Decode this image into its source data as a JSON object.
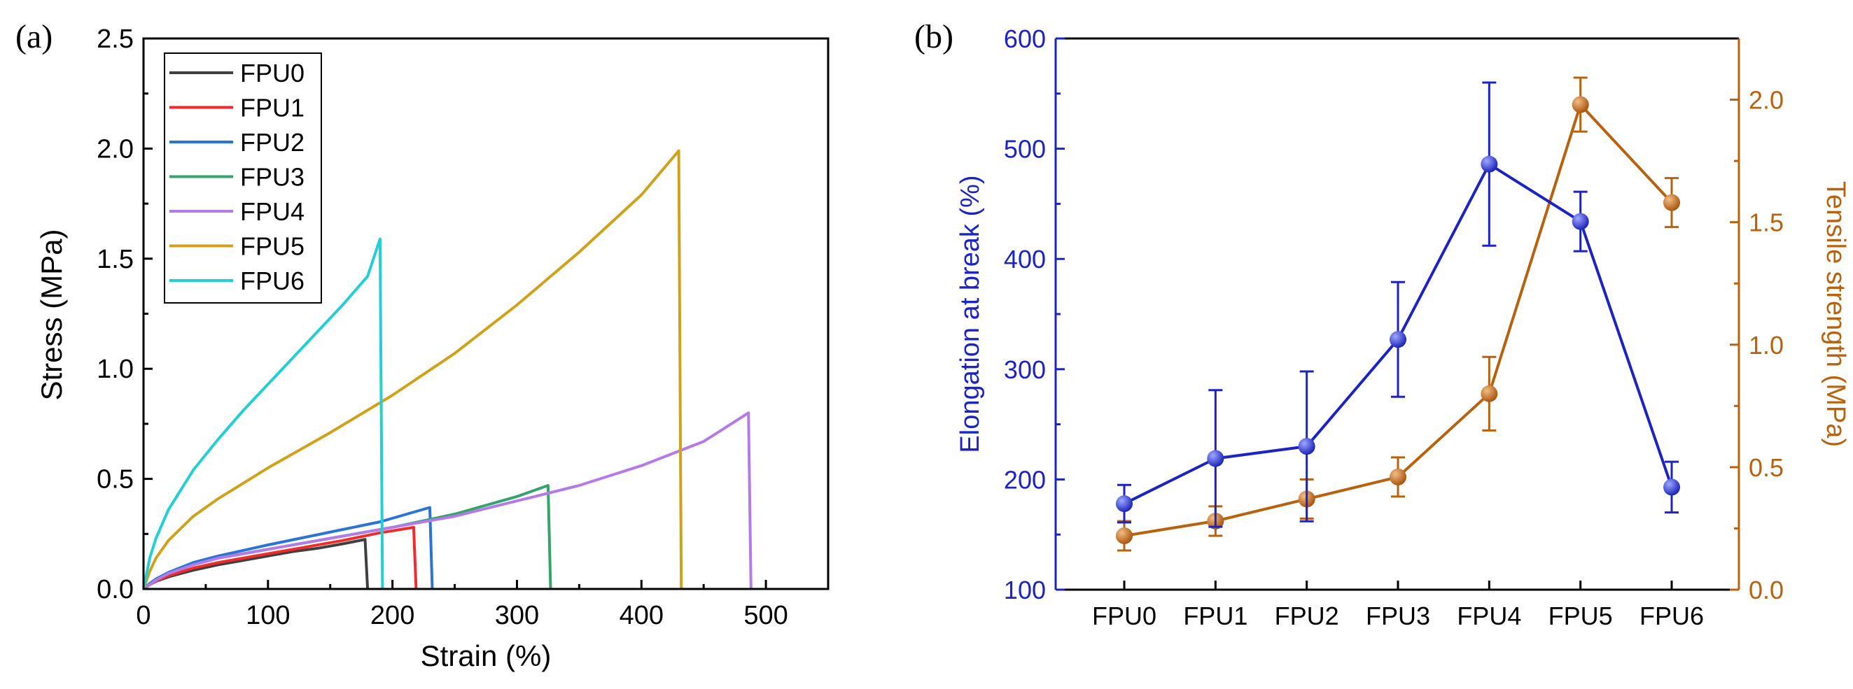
{
  "colors": {
    "FPU0": "#3f3f3f",
    "FPU1": "#ef2b2b",
    "FPU2": "#2a74d6",
    "FPU3": "#35a46a",
    "FPU4": "#b47be8",
    "FPU5": "#cfa21a",
    "FPU6": "#22cfd4",
    "elongation": "#1c23c4",
    "strength": "#b8620e"
  },
  "chart_data": [
    {
      "panel_label": "(a)",
      "type": "line",
      "xlabel": "Strain (%)",
      "ylabel": "Stress (MPa)",
      "xlim": [
        0,
        550
      ],
      "ylim": [
        0,
        2.5
      ],
      "xticks": [
        "0",
        "100",
        "200",
        "300",
        "400",
        "500"
      ],
      "yticks": [
        "0.0",
        "0.5",
        "1.0",
        "1.5",
        "2.0",
        "2.5"
      ],
      "legend_position": "top-left",
      "series": [
        {
          "name": "FPU0",
          "x": [
            0,
            5,
            10,
            20,
            40,
            60,
            80,
            100,
            120,
            140,
            160,
            178,
            180
          ],
          "y": [
            0,
            0.02,
            0.035,
            0.055,
            0.085,
            0.11,
            0.13,
            0.15,
            0.17,
            0.185,
            0.205,
            0.225,
            0
          ]
        },
        {
          "name": "FPU1",
          "x": [
            0,
            5,
            10,
            20,
            40,
            60,
            80,
            100,
            130,
            160,
            190,
            217,
            219
          ],
          "y": [
            0,
            0.02,
            0.035,
            0.06,
            0.095,
            0.12,
            0.14,
            0.16,
            0.19,
            0.22,
            0.255,
            0.28,
            0
          ]
        },
        {
          "name": "FPU2",
          "x": [
            0,
            5,
            10,
            20,
            40,
            60,
            80,
            100,
            130,
            160,
            190,
            230,
            232
          ],
          "y": [
            0,
            0.025,
            0.045,
            0.075,
            0.12,
            0.15,
            0.175,
            0.2,
            0.235,
            0.27,
            0.305,
            0.37,
            0
          ]
        },
        {
          "name": "FPU3",
          "x": [
            0,
            5,
            10,
            20,
            40,
            60,
            80,
            100,
            150,
            200,
            250,
            300,
            325,
            327
          ],
          "y": [
            0,
            0.02,
            0.04,
            0.07,
            0.11,
            0.14,
            0.16,
            0.18,
            0.23,
            0.28,
            0.34,
            0.42,
            0.47,
            0
          ]
        },
        {
          "name": "FPU4",
          "x": [
            0,
            5,
            10,
            20,
            40,
            60,
            80,
            100,
            150,
            200,
            250,
            300,
            350,
            400,
            450,
            486,
            488
          ],
          "y": [
            0,
            0.02,
            0.04,
            0.07,
            0.11,
            0.14,
            0.16,
            0.18,
            0.23,
            0.28,
            0.33,
            0.4,
            0.47,
            0.56,
            0.67,
            0.8,
            0
          ]
        },
        {
          "name": "FPU5",
          "x": [
            0,
            5,
            10,
            20,
            40,
            60,
            80,
            100,
            150,
            200,
            250,
            300,
            350,
            400,
            430,
            432
          ],
          "y": [
            0,
            0.08,
            0.14,
            0.22,
            0.33,
            0.41,
            0.48,
            0.55,
            0.71,
            0.88,
            1.07,
            1.29,
            1.53,
            1.79,
            1.99,
            0
          ]
        },
        {
          "name": "FPU6",
          "x": [
            0,
            5,
            10,
            20,
            40,
            60,
            80,
            100,
            120,
            140,
            160,
            180,
            190,
            192
          ],
          "y": [
            0,
            0.14,
            0.23,
            0.36,
            0.54,
            0.68,
            0.81,
            0.93,
            1.05,
            1.17,
            1.29,
            1.42,
            1.59,
            0
          ]
        }
      ]
    },
    {
      "panel_label": "(b)",
      "type": "line",
      "categories": [
        "FPU0",
        "FPU1",
        "FPU2",
        "FPU3",
        "FPU4",
        "FPU5",
        "FPU6"
      ],
      "ylabel_left": "Elongation at break (%)",
      "ylabel_right": "Tensile strength (MPa)",
      "ylim_left": [
        100,
        600
      ],
      "ylim_right": [
        0,
        2.25
      ],
      "yticks_left": [
        "100",
        "200",
        "300",
        "400",
        "500",
        "600"
      ],
      "yticks_right": [
        "0.0",
        "0.5",
        "1.0",
        "1.5",
        "2.0"
      ],
      "series": [
        {
          "name": "Elongation at break (%)",
          "axis": "left",
          "values": [
            178,
            219,
            230,
            327,
            486,
            434,
            193
          ],
          "errors": [
            17,
            62,
            68,
            52,
            74,
            27,
            23
          ]
        },
        {
          "name": "Tensile strength (MPa)",
          "axis": "right",
          "values": [
            0.22,
            0.28,
            0.37,
            0.46,
            0.8,
            1.98,
            1.58
          ],
          "errors": [
            0.06,
            0.06,
            0.08,
            0.08,
            0.15,
            0.11,
            0.1
          ]
        }
      ]
    }
  ]
}
